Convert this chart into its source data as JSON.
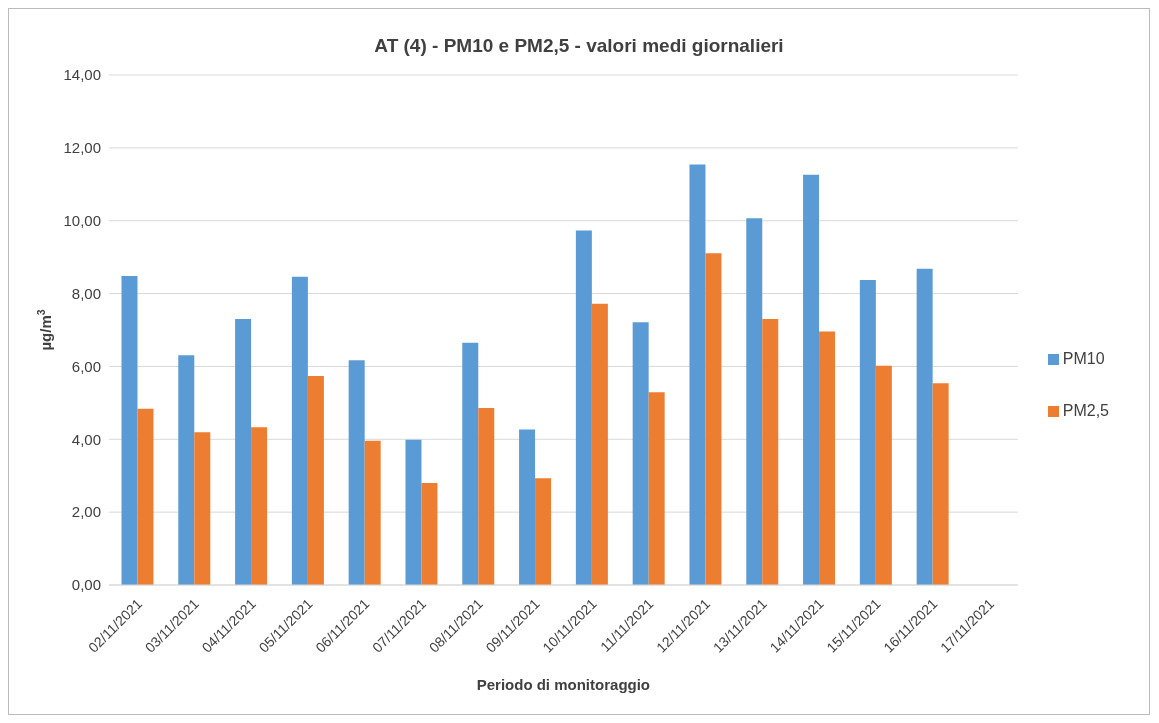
{
  "chart_data": {
    "type": "bar",
    "title": "AT (4) - PM10 e PM2,5 - valori medi giornalieri",
    "xlabel": "Periodo di monitoraggio",
    "ylabel": "µg/m$^{3}$",
    "categories": [
      "02/11/2021",
      "03/11/2021",
      "04/11/2021",
      "05/11/2021",
      "06/11/2021",
      "07/11/2021",
      "08/11/2021",
      "09/11/2021",
      "10/11/2021",
      "11/11/2021",
      "12/11/2021",
      "13/11/2021",
      "14/11/2021",
      "15/11/2021",
      "16/11/2021",
      "17/11/2021"
    ],
    "series": [
      {
        "name": "PM10",
        "color": "#5b9bd5",
        "values": [
          8.48,
          6.31,
          7.3,
          8.46,
          6.17,
          3.99,
          6.65,
          4.27,
          9.73,
          7.21,
          11.54,
          10.07,
          11.26,
          8.37,
          8.68,
          null
        ]
      },
      {
        "name": "PM2,5",
        "color": "#ed7d31",
        "values": [
          4.84,
          4.19,
          4.33,
          5.74,
          3.96,
          2.8,
          4.86,
          2.93,
          7.72,
          5.29,
          9.11,
          7.3,
          6.96,
          6.02,
          5.54,
          null
        ]
      }
    ],
    "ylim": [
      0,
      14
    ],
    "yticks": [
      {
        "value": 0,
        "label": "0,00"
      },
      {
        "value": 2,
        "label": "2,00"
      },
      {
        "value": 4,
        "label": "4,00"
      },
      {
        "value": 6,
        "label": "6,00"
      },
      {
        "value": 8,
        "label": "8,00"
      },
      {
        "value": 10,
        "label": "10,00"
      },
      {
        "value": 12,
        "label": "12,00"
      },
      {
        "value": 14,
        "label": "14,00"
      }
    ],
    "grid": "y",
    "legend": "right"
  }
}
